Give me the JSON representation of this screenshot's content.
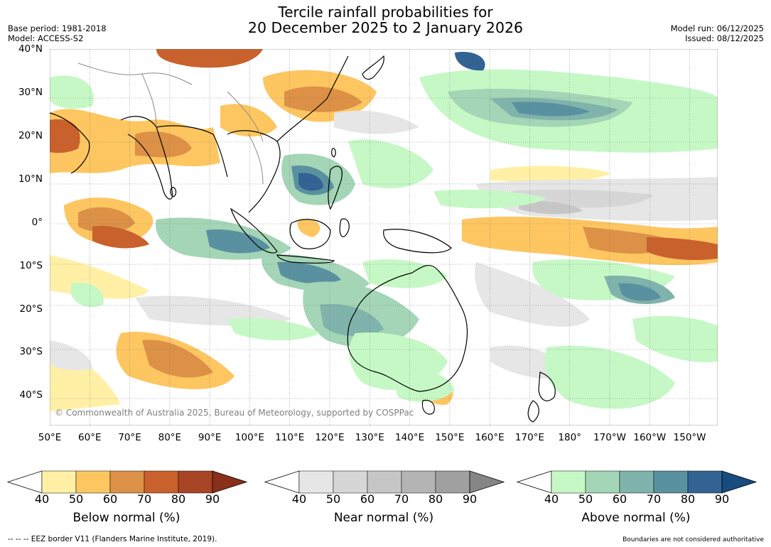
{
  "header": {
    "title_line1": "Tercile rainfall probabilities for",
    "title_line2": "20 December 2025 to 2 January 2026",
    "base_period": "Base period: 1981-2018",
    "model": "Model: ACCESS-S2",
    "model_run": "Model run: 06/12/2025",
    "issued": "Issued: 08/12/2025"
  },
  "map": {
    "lat_ticks": [
      "40°N",
      "30°N",
      "20°N",
      "10°N",
      "0°",
      "10°S",
      "20°S",
      "30°S",
      "40°S"
    ],
    "lat_values": [
      40,
      30,
      20,
      10,
      0,
      -10,
      -20,
      -30,
      -40
    ],
    "lon_ticks": [
      "50°E",
      "60°E",
      "70°E",
      "80°E",
      "90°E",
      "100°E",
      "110°E",
      "120°E",
      "130°E",
      "140°E",
      "150°E",
      "160°E",
      "170°E",
      "180°",
      "170°W",
      "160°W",
      "150°W"
    ],
    "lon_values": [
      50,
      60,
      70,
      80,
      90,
      100,
      110,
      120,
      130,
      140,
      150,
      160,
      170,
      180,
      190,
      200,
      210
    ],
    "lon_range": [
      50,
      217
    ],
    "lat_range": [
      -47,
      40
    ],
    "copyright": "© Commonwealth of Australia 2025, Bureau of Meteorology, supported by COSPPac"
  },
  "colorbars": [
    {
      "title": "Below normal (%)",
      "ticks": [
        "40",
        "50",
        "60",
        "70",
        "80",
        "90"
      ],
      "colors": [
        "#fff0a6",
        "#fdc661",
        "#dc9146",
        "#c9612d",
        "#a84524",
        "#8a2f1a"
      ]
    },
    {
      "title": "Near normal (%)",
      "ticks": [
        "40",
        "50",
        "60",
        "70",
        "80",
        "90"
      ],
      "colors": [
        "#e6e6e6",
        "#d6d6d6",
        "#c6c6c6",
        "#b4b4b4",
        "#a0a0a0",
        "#858585"
      ]
    },
    {
      "title": "Above normal (%)",
      "ticks": [
        "40",
        "50",
        "60",
        "70",
        "80",
        "90"
      ],
      "colors": [
        "#c6f8c6",
        "#a3d5b6",
        "#7fb3ab",
        "#5991a0",
        "#326393",
        "#184b7e"
      ]
    }
  ],
  "footer": {
    "eez_legend": "--  --  -- EEZ border V11 (Flanders Marine Institute, 2019).",
    "disclaimer": "Boundaries are not considered authoritative"
  }
}
